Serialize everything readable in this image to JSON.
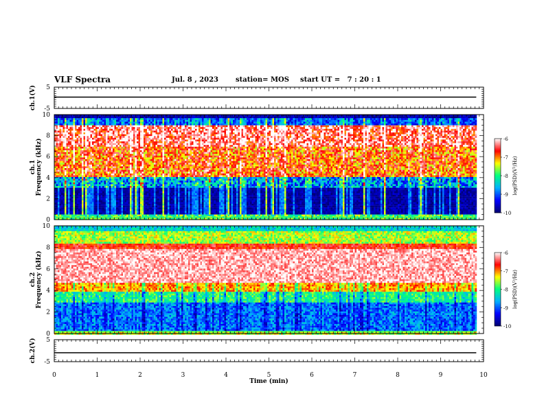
{
  "header": {
    "title": "VLF Spectra",
    "date": "Jul. 8 , 2023",
    "station": "station= MOS",
    "start_ut": "start UT =   7 : 20 : 1"
  },
  "chart_data": [
    {
      "type": "line",
      "panel": "ch1-waveform",
      "ylabel": "ch.1(V)",
      "ylim": [
        -5,
        5
      ],
      "yticks": [
        "5",
        "-5"
      ],
      "x": [
        0,
        9.83
      ],
      "y": [
        0,
        0
      ]
    },
    {
      "type": "heatmap",
      "panel": "ch1-spectrogram",
      "ylabel": "ch.1\nFrequency (kHz)",
      "ylim": [
        0,
        10
      ],
      "yticks": [
        "0",
        "2",
        "4",
        "6",
        "8",
        "10"
      ],
      "colorbar": {
        "label": "log(PSD)(V²/Hz)",
        "range": [
          -10,
          -6
        ],
        "ticks": [
          "-6",
          "-7",
          "-8",
          "-9",
          "-10"
        ],
        "colors": [
          "#000070",
          "#0000ff",
          "#00b0ff",
          "#00ff80",
          "#ffff00",
          "#ff0000",
          "#ffffff"
        ]
      },
      "bands": [
        {
          "freq": [
            9.0,
            10.0
          ],
          "level": "low (-10 to -9)"
        },
        {
          "freq": [
            4.0,
            9.0
          ],
          "level": "high (-8 to -6.5)"
        },
        {
          "freq": [
            0.3,
            4.0
          ],
          "level": "very low (-10)"
        }
      ]
    },
    {
      "type": "heatmap",
      "panel": "ch2-spectrogram",
      "ylabel": "ch.2\nFrequency (kHz)",
      "ylim": [
        0,
        10
      ],
      "yticks": [
        "0",
        "2",
        "4",
        "6",
        "8",
        "10"
      ],
      "colorbar": {
        "label": "log(PSD)(V²/Hz)",
        "range": [
          -10,
          -6
        ],
        "ticks": [
          "-6",
          "-7",
          "-8",
          "-9",
          "-10"
        ],
        "colors": [
          "#000070",
          "#0000ff",
          "#00b0ff",
          "#00ff80",
          "#ffff00",
          "#ff0000",
          "#ffffff"
        ]
      },
      "bands": [
        {
          "freq": [
            8.5,
            10.0
          ],
          "level": "medium (-8.5 to -7.5)"
        },
        {
          "freq": [
            4.5,
            8.5
          ],
          "level": "very high (-6.5 to -6)"
        },
        {
          "freq": [
            0.3,
            4.5
          ],
          "level": "low (-9.5 to -8.5)"
        }
      ]
    },
    {
      "type": "line",
      "panel": "ch2-waveform",
      "ylabel": "ch.2(V)",
      "ylim": [
        -5,
        5
      ],
      "yticks": [
        "5",
        "-5"
      ],
      "x": [
        0,
        9.83
      ],
      "y": [
        0,
        0
      ]
    }
  ],
  "x_axis": {
    "label": "Time (min)",
    "range": [
      0,
      10
    ],
    "ticks": [
      "0",
      "1",
      "2",
      "3",
      "4",
      "5",
      "6",
      "7",
      "8",
      "9",
      "10"
    ],
    "data_end": 9.83
  }
}
